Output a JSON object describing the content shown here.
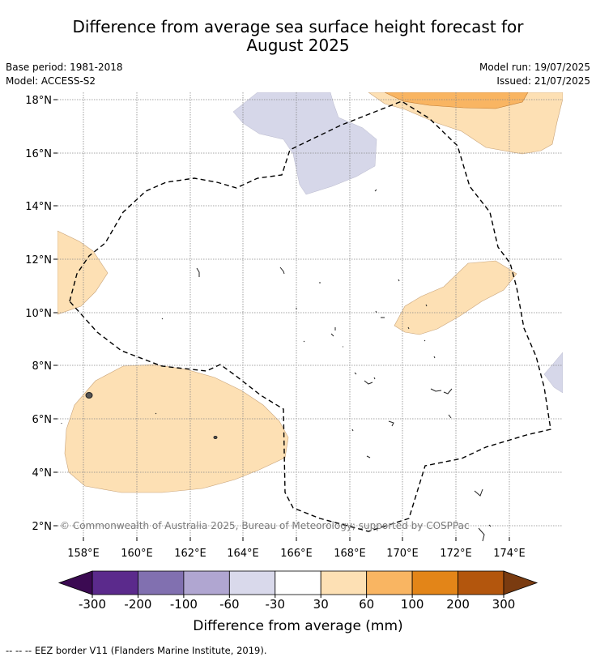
{
  "title_line1": "Difference from average sea surface height forecast for",
  "title_line2": "August 2025",
  "meta": {
    "base_period": "Base period: 1981-2018",
    "model": "Model: ACCESS-S2",
    "model_run": "Model run: 19/07/2025",
    "issued": "Issued: 21/07/2025"
  },
  "map": {
    "lon_labels": [
      "158°E",
      "160°E",
      "162°E",
      "164°E",
      "166°E",
      "168°E",
      "170°E",
      "172°E",
      "174°E"
    ],
    "lat_labels": [
      "18°N",
      "16°N",
      "14°N",
      "12°N",
      "10°N",
      "8°N",
      "6°N",
      "4°N",
      "2°N"
    ],
    "gridlines": true,
    "copyright": "© Commonwealth of Australia 2025, Bureau of Meteorology; supported by COSPPac"
  },
  "colorbar": {
    "ticks": [
      "-300",
      "-200",
      "-100",
      "-60",
      "-30",
      "30",
      "60",
      "100",
      "200",
      "300"
    ],
    "label": "Difference from average (mm)",
    "extend_low_color": "#3b0a52",
    "extend_high_color": "#7a3b10",
    "colors": [
      "#5b2a8c",
      "#8170b0",
      "#b0a6d1",
      "#d9d9eb",
      "#ffffff",
      "#fde0b4",
      "#f9b562",
      "#e38518",
      "#b3560d"
    ]
  },
  "legend_footer": "--  --  -- EEZ border V11 (Flanders Marine Institute, 2019)."
}
